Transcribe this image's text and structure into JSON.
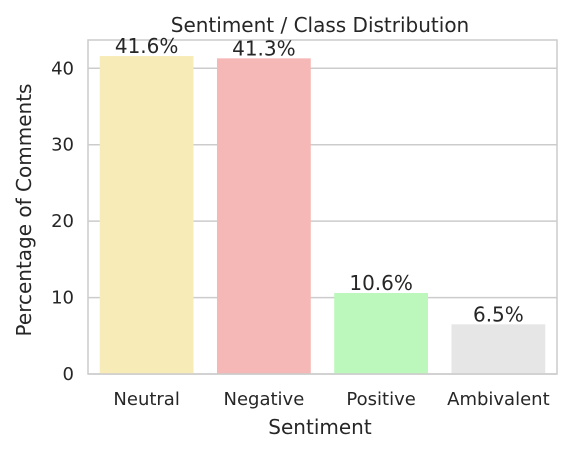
{
  "chart_data": {
    "type": "bar",
    "title": "Sentiment / Class Distribution",
    "xlabel": "Sentiment",
    "ylabel": "Percentage of Comments",
    "categories": [
      "Neutral",
      "Negative",
      "Positive",
      "Ambivalent"
    ],
    "values": [
      41.6,
      41.3,
      10.6,
      6.5
    ],
    "value_labels": [
      "41.6%",
      "41.3%",
      "10.6%",
      "6.5%"
    ],
    "colors": [
      "#f7ecb7",
      "#f6b8b7",
      "#bcf8bb",
      "#e6e6e6"
    ],
    "ylim": [
      0,
      43.7
    ],
    "yticks": [
      0,
      10,
      20,
      30,
      40
    ],
    "grid": "horizontal",
    "legend": "none"
  }
}
